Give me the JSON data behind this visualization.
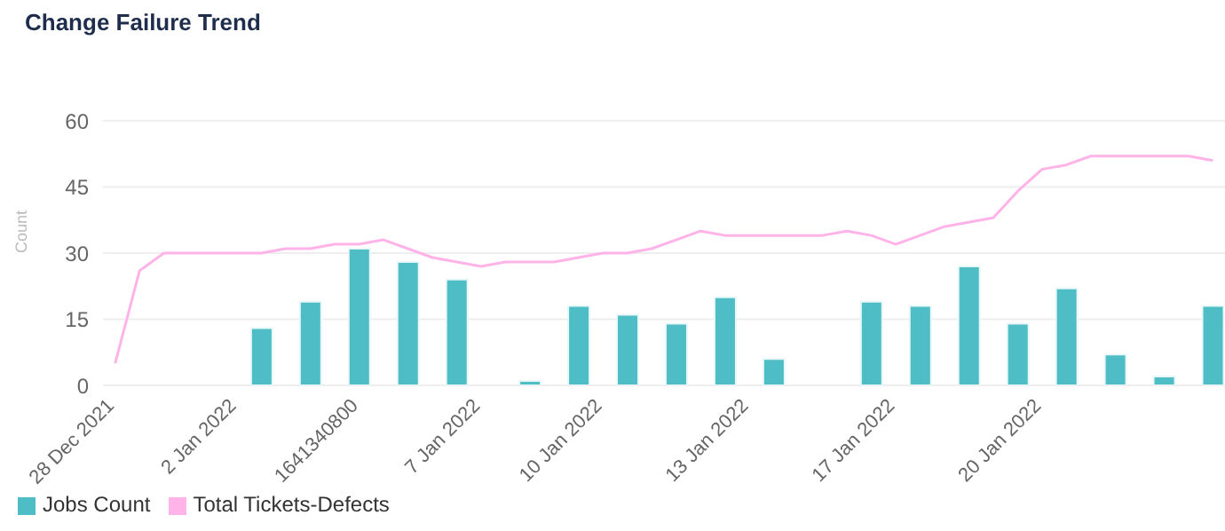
{
  "chart_data": {
    "type": "bar",
    "title": "Change Failure Trend",
    "ylabel": "Count",
    "categories": [
      "28 Dec 2021",
      null,
      null,
      null,
      null,
      "2 Jan 2022",
      null,
      null,
      null,
      null,
      "1641340800",
      null,
      null,
      null,
      null,
      "7 Jan 2022",
      null,
      null,
      null,
      null,
      "10 Jan 2022",
      null,
      null,
      null,
      null,
      null,
      "13 Jan 2022",
      null,
      null,
      null,
      null,
      null,
      "17 Jan 2022",
      null,
      null,
      null,
      null,
      null,
      "20 Jan 2022",
      null,
      null,
      null,
      null,
      null,
      null,
      null
    ],
    "series": [
      {
        "name": "Jobs Count",
        "color": "#4fbdc5",
        "values": [
          null,
          null,
          null,
          null,
          null,
          null,
          13,
          null,
          19,
          null,
          31,
          null,
          28,
          null,
          24,
          null,
          null,
          1,
          null,
          18,
          null,
          16,
          null,
          14,
          null,
          20,
          null,
          6,
          null,
          null,
          null,
          19,
          null,
          18,
          null,
          27,
          null,
          14,
          null,
          22,
          null,
          7,
          null,
          2,
          null,
          18
        ]
      },
      {
        "name": "Total Tickets-Defects",
        "type": "line",
        "color": "#ffb3e8",
        "values": [
          5,
          26,
          30,
          30,
          30,
          30,
          30,
          31,
          31,
          32,
          32,
          33,
          31,
          29,
          28,
          27,
          28,
          28,
          28,
          29,
          30,
          30,
          31,
          33,
          35,
          34,
          34,
          34,
          34,
          34,
          35,
          34,
          32,
          34,
          36,
          37,
          38,
          44,
          49,
          50,
          52,
          52,
          52,
          52,
          52,
          51
        ]
      }
    ],
    "ylim": [
      0,
      60
    ],
    "yticks": [
      0,
      15,
      30,
      45,
      60
    ],
    "grid": "y",
    "legend": "bottom left",
    "marker": "none",
    "line_style": "solid"
  }
}
